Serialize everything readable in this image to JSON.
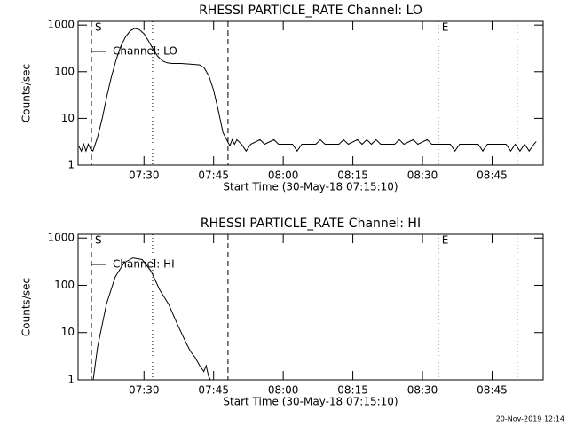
{
  "chart_data": [
    {
      "type": "line",
      "title": "RHESSI PARTICLE_RATE Channel: LO",
      "xlabel": "Start Time (30-May-18 07:15:10)",
      "ylabel": "Counts/sec",
      "ylog": true,
      "legend": "upper left",
      "xlim": [
        15.8,
        116
      ],
      "ylim": [
        1,
        1200
      ],
      "xticks": [
        {
          "value": 30,
          "label": "07:30"
        },
        {
          "value": 45,
          "label": "07:45"
        },
        {
          "value": 60,
          "label": "08:00"
        },
        {
          "value": 75,
          "label": "08:15"
        },
        {
          "value": 90,
          "label": "08:30"
        },
        {
          "value": 105,
          "label": "08:45"
        }
      ],
      "yticks": [
        1,
        10,
        100,
        1000
      ],
      "vlines": [
        {
          "x": 18.67,
          "style": "dashed",
          "label": "S"
        },
        {
          "x": 31.85,
          "style": "dotted"
        },
        {
          "x": 48.1,
          "style": "dashed"
        },
        {
          "x": 93.4,
          "style": "dotted",
          "label": "E"
        },
        {
          "x": 110.4,
          "style": "dotted"
        }
      ],
      "series": [
        {
          "name": "Channel: LO",
          "color": "#000000",
          "x": [
            16.0,
            16.5,
            17.0,
            17.5,
            18.0,
            18.5,
            19.0,
            20,
            21,
            22,
            23,
            24,
            25,
            26,
            27,
            28,
            29,
            30,
            31,
            32,
            33,
            34,
            35,
            36,
            38,
            40,
            42,
            43,
            44,
            45,
            46,
            47,
            48,
            48.5,
            49,
            49.5,
            50,
            51,
            52,
            53,
            55,
            56,
            58,
            59,
            62,
            63,
            64,
            67,
            68,
            69,
            72,
            73,
            74,
            76,
            77,
            78,
            79,
            80,
            81,
            84,
            85,
            86,
            88,
            89,
            91,
            92,
            96,
            97,
            98,
            102,
            103,
            104,
            108,
            109,
            110,
            111,
            112,
            113,
            114,
            114.5
          ],
          "values": [
            2.5,
            2.0,
            2.8,
            2.0,
            2.8,
            2.2,
            2.0,
            4,
            10,
            30,
            80,
            180,
            350,
            550,
            750,
            850,
            800,
            650,
            450,
            300,
            210,
            170,
            155,
            150,
            150,
            145,
            140,
            120,
            80,
            40,
            15,
            5,
            3.2,
            2.6,
            3.5,
            2.8,
            3.5,
            2.8,
            2.0,
            2.8,
            3.5,
            2.8,
            3.5,
            2.8,
            2.8,
            2.0,
            2.8,
            2.8,
            3.5,
            2.8,
            2.8,
            3.5,
            2.8,
            3.5,
            2.8,
            3.5,
            2.8,
            3.5,
            2.8,
            2.8,
            3.5,
            2.8,
            3.5,
            2.8,
            3.5,
            2.8,
            2.8,
            2.0,
            2.8,
            2.8,
            2.0,
            2.8,
            2.8,
            2.0,
            2.8,
            2.0,
            2.8,
            2.0,
            2.8,
            3.2
          ]
        }
      ]
    },
    {
      "type": "line",
      "title": "RHESSI PARTICLE_RATE Channel: HI",
      "xlabel": "Start Time (30-May-18 07:15:10)",
      "ylabel": "Counts/sec",
      "ylog": true,
      "legend": "upper left",
      "xlim": [
        15.8,
        116
      ],
      "ylim": [
        1,
        1200
      ],
      "xticks": [
        {
          "value": 30,
          "label": "07:30"
        },
        {
          "value": 45,
          "label": "07:45"
        },
        {
          "value": 60,
          "label": "08:00"
        },
        {
          "value": 75,
          "label": "08:15"
        },
        {
          "value": 90,
          "label": "08:30"
        },
        {
          "value": 105,
          "label": "08:45"
        }
      ],
      "yticks": [
        1,
        10,
        100,
        1000
      ],
      "vlines": [
        {
          "x": 18.67,
          "style": "dashed",
          "label": "S"
        },
        {
          "x": 31.85,
          "style": "dotted"
        },
        {
          "x": 48.1,
          "style": "dashed"
        },
        {
          "x": 93.4,
          "style": "dotted",
          "label": "E"
        },
        {
          "x": 110.4,
          "style": "dotted"
        }
      ],
      "series": [
        {
          "name": "Channel: HI",
          "color": "#000000",
          "x": [
            19.05,
            20.0,
            21.9,
            23.8,
            25.7,
            27.6,
            29.6,
            31.5,
            33.4,
            35.3,
            37.2,
            39.1,
            40.0,
            41.0,
            42.0,
            42.9,
            43.4,
            43.9,
            44.3
          ],
          "values": [
            1.0,
            5,
            40,
            150,
            300,
            380,
            350,
            200,
            80,
            40,
            15,
            6,
            4,
            3,
            2,
            1.5,
            2,
            1.2,
            1.0
          ]
        }
      ]
    }
  ],
  "footer": "20-Nov-2019 12:14"
}
